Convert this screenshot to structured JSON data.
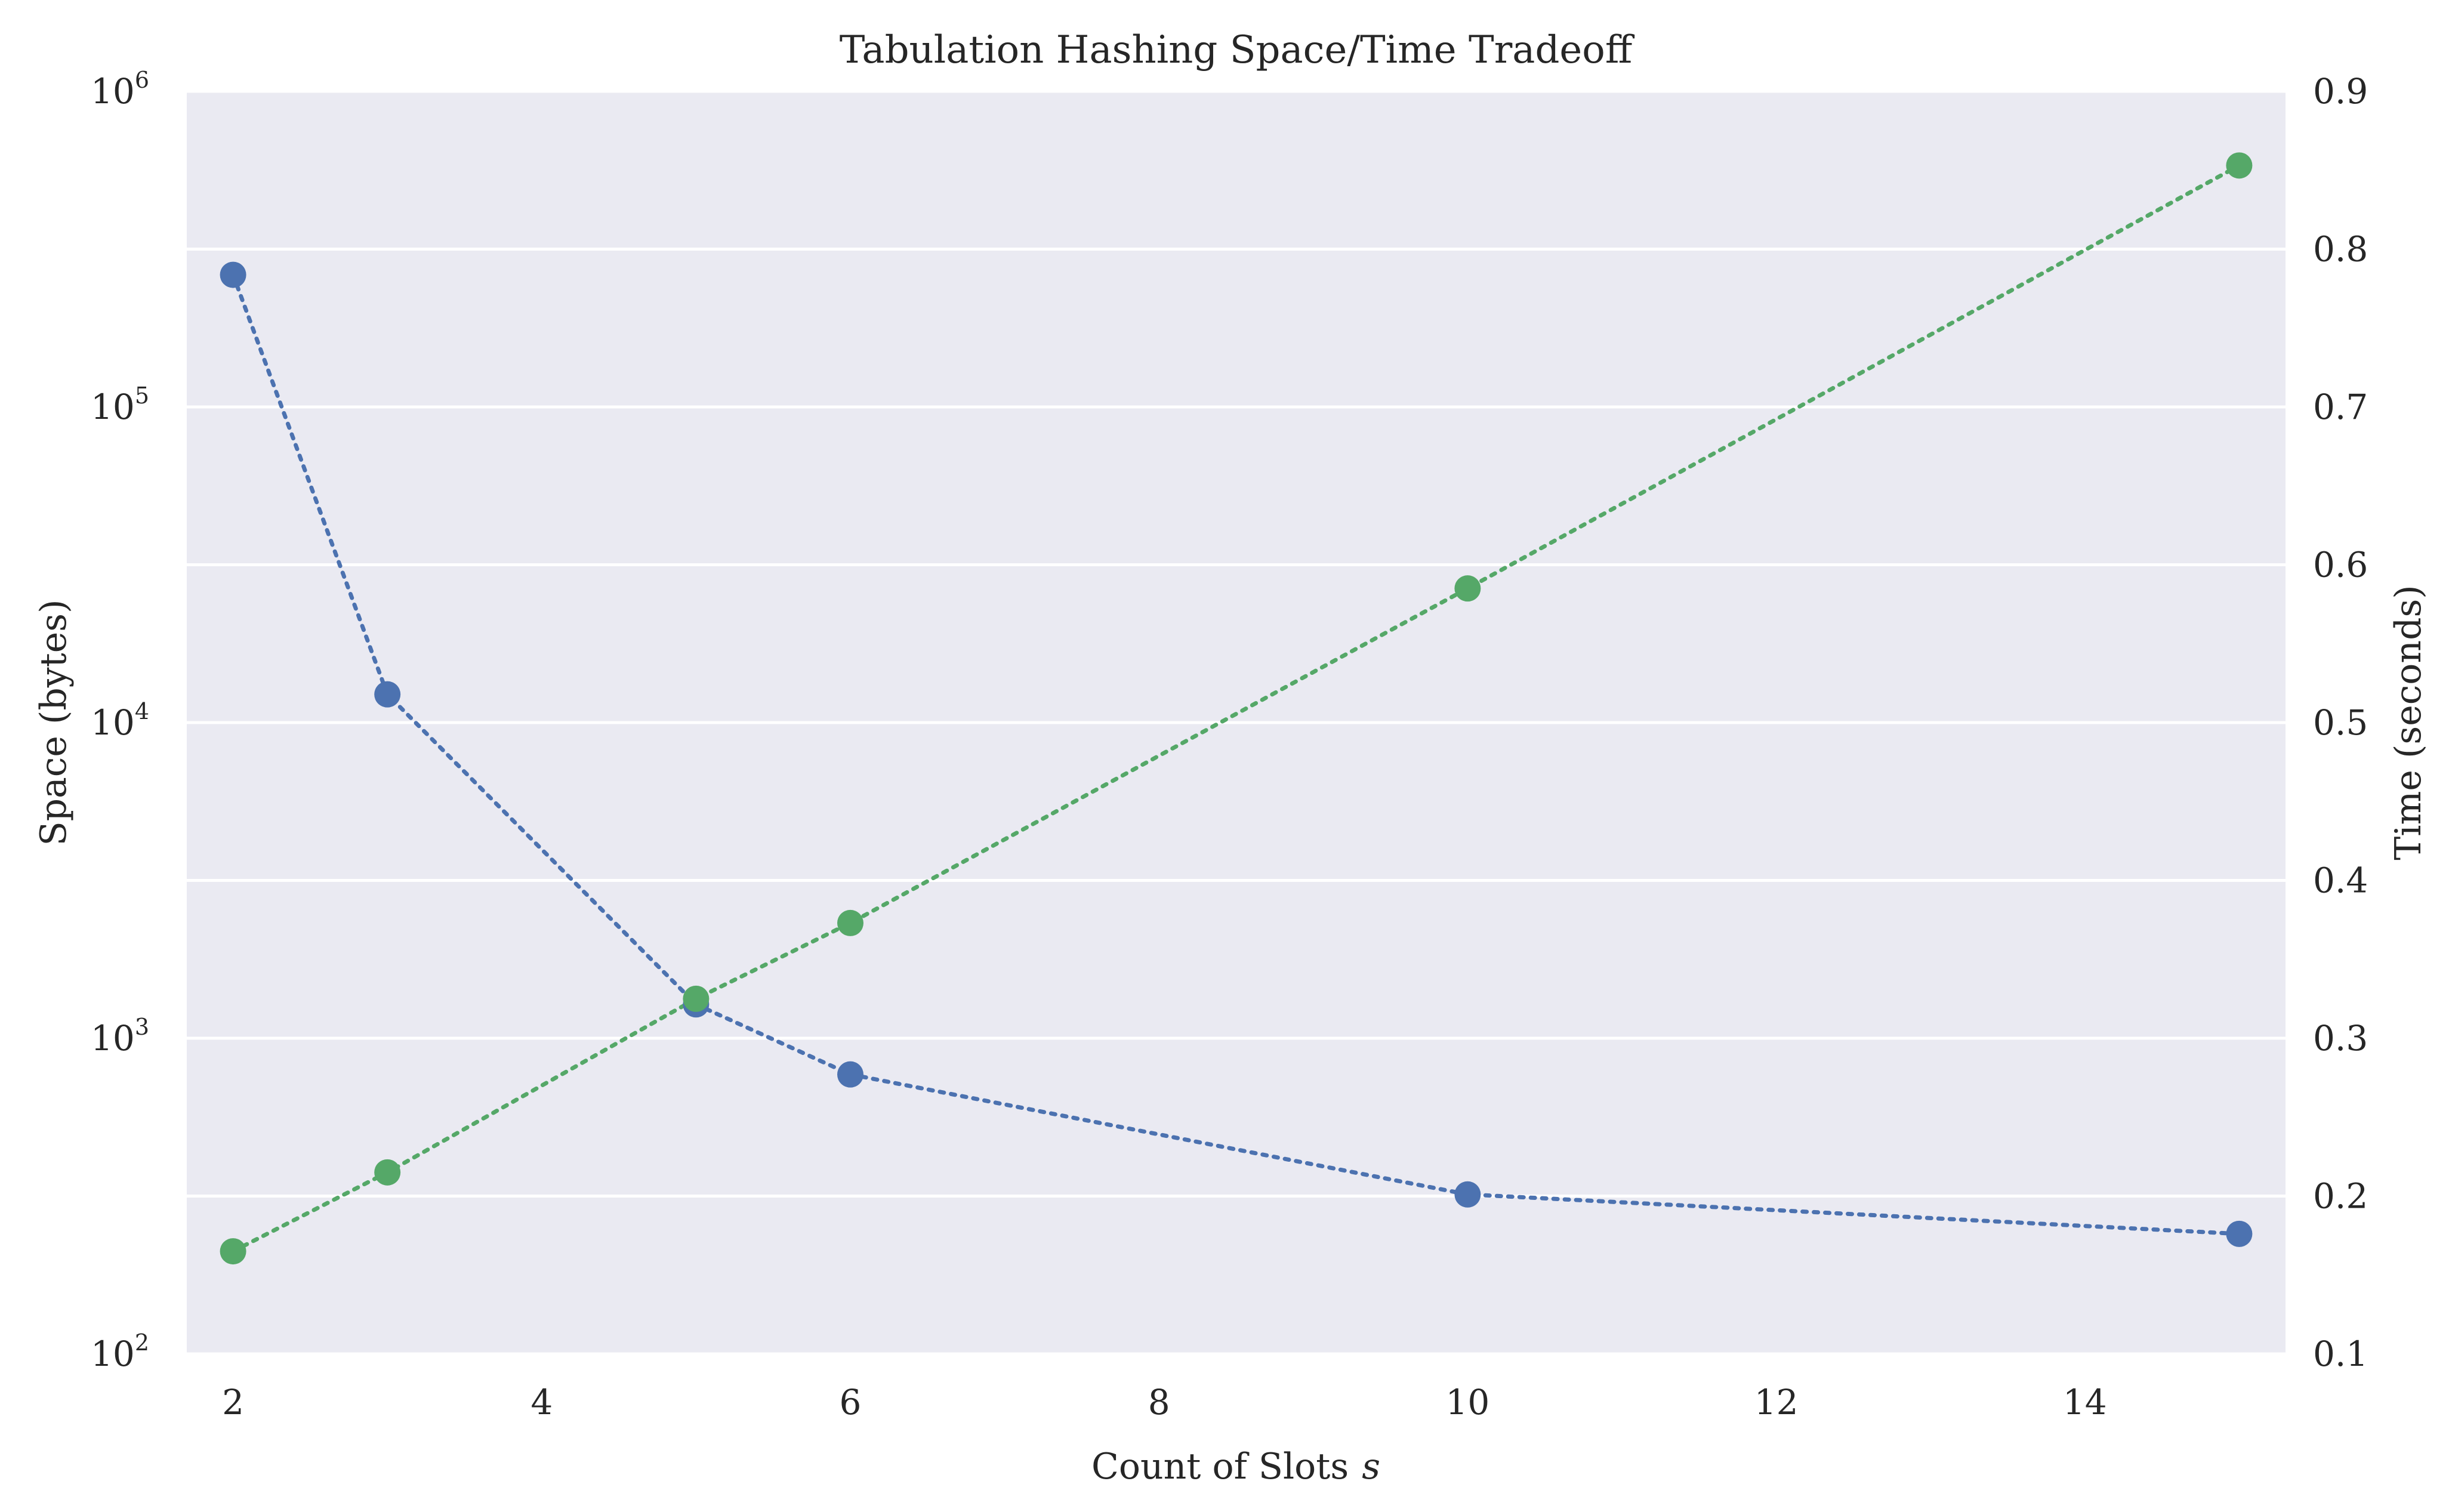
{
  "chart_data": {
    "type": "line",
    "title": "Tabulation Hashing Space/Time Tradeoff",
    "xlabel": "Count of Slots",
    "xlabel_var": "s",
    "ylabel_left": "Space (bytes)",
    "ylabel_right": "Time (seconds)",
    "xlim": [
      1.7,
      15.3
    ],
    "xticks": [
      2,
      4,
      6,
      8,
      10,
      12,
      14
    ],
    "y_left": {
      "scale": "log",
      "lim": [
        100,
        1000000
      ],
      "tick_base": "10",
      "tick_exponents": [
        "2",
        "3",
        "4",
        "5",
        "6"
      ]
    },
    "y_right": {
      "scale": "linear",
      "lim": [
        0.1,
        0.9
      ],
      "ticks": [
        "0.1",
        "0.2",
        "0.3",
        "0.4",
        "0.5",
        "0.6",
        "0.7",
        "0.8",
        "0.9"
      ]
    },
    "grid": true,
    "series": [
      {
        "axis": "left",
        "color": "#4c72b0",
        "linestyle": "dotted",
        "marker": "circle",
        "x": [
          2,
          3,
          5,
          6,
          10,
          15
        ],
        "values": [
          262144,
          12288,
          1280,
          768,
          320,
          240
        ]
      },
      {
        "axis": "right",
        "color": "#55a868",
        "linestyle": "dotted",
        "marker": "circle",
        "x": [
          2,
          3,
          5,
          6,
          10,
          15
        ],
        "values": [
          0.165,
          0.215,
          0.325,
          0.373,
          0.585,
          0.853
        ]
      }
    ]
  },
  "colors": {
    "plot_background": "#eaeaf2",
    "grid": "#ffffff",
    "text": "#262626"
  }
}
